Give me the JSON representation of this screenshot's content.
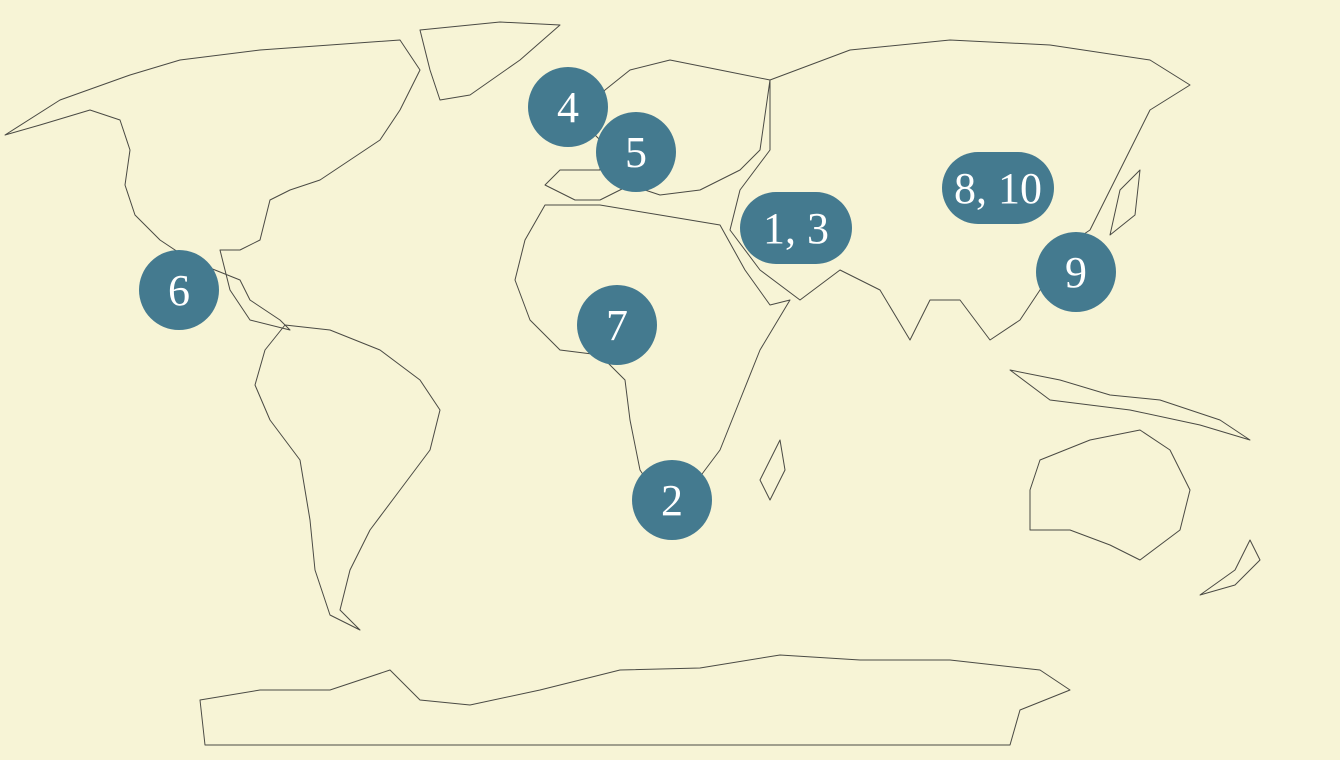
{
  "map": {
    "background_color": "#f7f4d6",
    "marker_color": "#447a8f",
    "markers": [
      {
        "label": "4",
        "region": "North Atlantic / UK"
      },
      {
        "label": "5",
        "region": "Central Europe"
      },
      {
        "label": "1, 3",
        "region": "Middle East"
      },
      {
        "label": "8, 10",
        "region": "China"
      },
      {
        "label": "9",
        "region": "East China"
      },
      {
        "label": "6",
        "region": "Mexico"
      },
      {
        "label": "7",
        "region": "West Africa"
      },
      {
        "label": "2",
        "region": "Southern Africa"
      }
    ]
  }
}
